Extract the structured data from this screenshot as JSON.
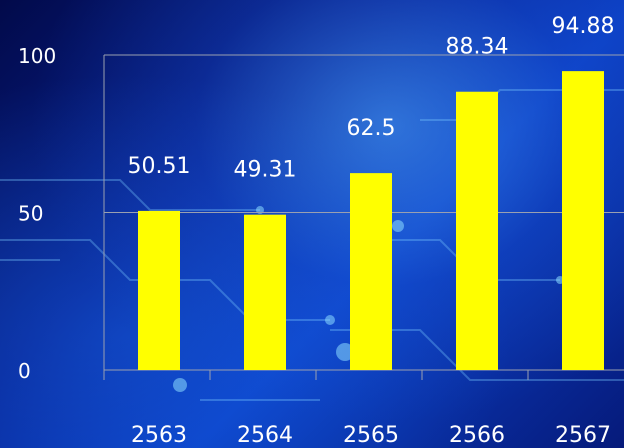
{
  "colors": {
    "bar": "#ffff00",
    "text": "#ffffff",
    "grid": "#9aa0b0"
  },
  "chart_data": {
    "type": "bar",
    "title": "",
    "xlabel": "",
    "ylabel": "",
    "categories": [
      "2563",
      "2564",
      "2565",
      "2566",
      "2567"
    ],
    "values": [
      50.51,
      49.31,
      62.5,
      88.34,
      94.88
    ],
    "data_labels": [
      "50.51",
      "49.31",
      "62.5",
      "88.34",
      "94.88"
    ],
    "y_ticks": [
      0,
      50,
      100
    ],
    "y_tick_labels": [
      "0",
      "50",
      "100"
    ],
    "ylim": [
      0,
      100
    ],
    "grid": true,
    "legend": "none"
  }
}
